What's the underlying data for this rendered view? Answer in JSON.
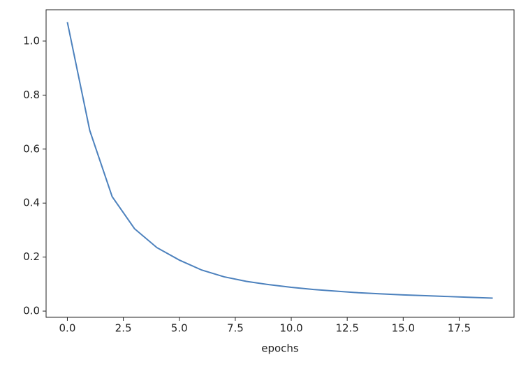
{
  "chart_data": {
    "type": "line",
    "xlabel": "epochs",
    "x": [
      0,
      1,
      2,
      3,
      4,
      5,
      6,
      7,
      8,
      9,
      10,
      11,
      12,
      13,
      14,
      15,
      16,
      17,
      18,
      19
    ],
    "series": [
      {
        "color": "#4c81bd",
        "values": [
          1.07,
          0.669,
          0.424,
          0.305,
          0.235,
          0.189,
          0.152,
          0.127,
          0.11,
          0.098,
          0.088,
          0.08,
          0.074,
          0.068,
          0.064,
          0.06,
          0.057,
          0.054,
          0.051,
          0.048
        ]
      }
    ],
    "xlim": [
      -0.95,
      19.95
    ],
    "xticks": [
      {
        "value": 0,
        "label": "0.0"
      },
      2.5,
      {
        "value": 5,
        "label": "5.0"
      },
      7.5,
      {
        "value": 10,
        "label": "10.0"
      },
      12.5,
      {
        "value": 15,
        "label": "15.0"
      },
      17.5
    ],
    "ylim": [
      -0.023,
      1.116
    ],
    "yticks": [
      {
        "value": 0,
        "label": "0.0"
      },
      0.2,
      0.4,
      0.6,
      0.8,
      {
        "value": 1,
        "label": "1.0"
      }
    ]
  }
}
